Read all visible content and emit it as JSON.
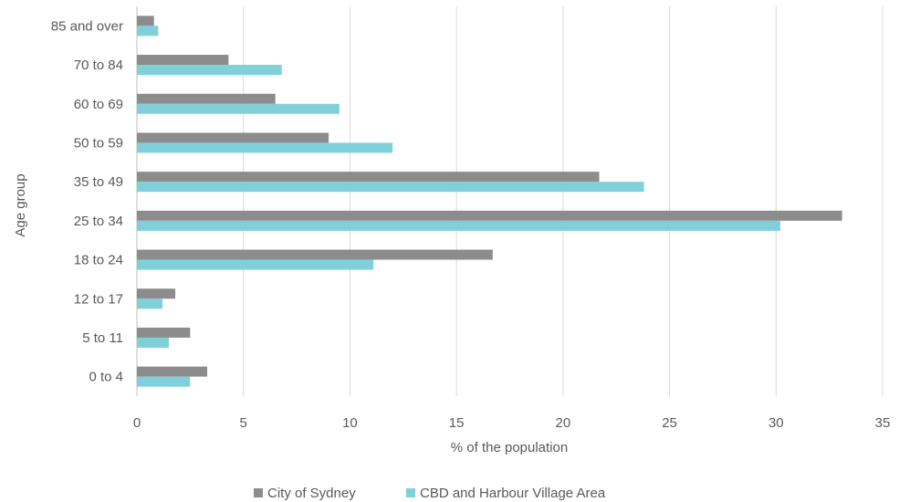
{
  "chart_data": {
    "type": "bar",
    "orientation": "horizontal",
    "title": "",
    "xlabel": "% of the population",
    "ylabel": "Age group",
    "xlim": [
      0,
      35
    ],
    "xticks": [
      0,
      5,
      10,
      15,
      20,
      25,
      30,
      35
    ],
    "grid": "vertical",
    "legend_position": "bottom",
    "categories": [
      "85 and over",
      "70 to 84",
      "60 to 69",
      "50 to 59",
      "35 to 49",
      "25 to 34",
      "18 to 24",
      "12 to 17",
      "5 to 11",
      "0 to 4"
    ],
    "series": [
      {
        "name": "City of Sydney",
        "color": "#8c8c8c",
        "values": [
          0.8,
          4.3,
          6.5,
          9.0,
          21.7,
          33.1,
          16.7,
          1.8,
          2.5,
          3.3
        ]
      },
      {
        "name": "CBD and Harbour Village Area",
        "color": "#7fd0d8",
        "values": [
          1.0,
          6.8,
          9.5,
          12.0,
          23.8,
          30.2,
          11.1,
          1.2,
          1.5,
          2.5
        ]
      }
    ]
  }
}
